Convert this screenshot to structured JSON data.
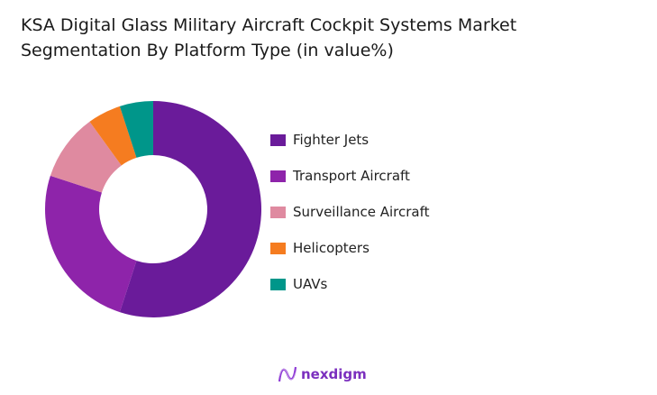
{
  "title_line1": "KSA Digital Glass Military Aircraft Cockpit Systems Market",
  "title_line2": "Segmentation By Platform Type (in value%)",
  "chart_data": {
    "type": "pie",
    "donut": true,
    "title": "KSA Digital Glass Military Aircraft Cockpit Systems Market Segmentation By Platform Type (in value%)",
    "legend_position": "right",
    "categories": [
      "Fighter Jets",
      "Transport Aircraft",
      "Surveillance Aircraft",
      "Helicopters",
      "UAVs"
    ],
    "values": [
      55,
      25,
      10,
      5,
      5
    ],
    "colors": [
      "#6a1b9a",
      "#8e24aa",
      "#df8aa0",
      "#f57c20",
      "#00968a"
    ]
  },
  "logo": {
    "text": "nexdigm"
  }
}
